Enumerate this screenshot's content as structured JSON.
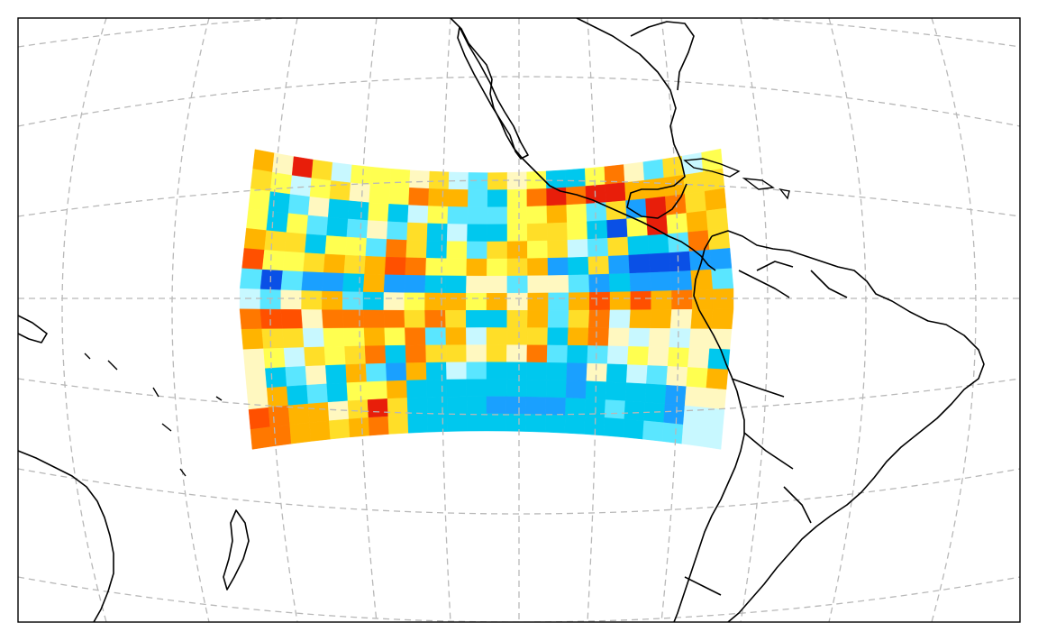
{
  "map": {
    "projection": "lambert-azimuthal",
    "coastline_color": "#000000",
    "graticule_color": "#b8b8b8",
    "graticule_style": "dashed",
    "frame_color": "#000000",
    "background": "#ffffff"
  },
  "chart_data": {
    "type": "heatmap",
    "colormap": "jet",
    "rows": 15,
    "cols": 24,
    "colors": {
      "1": "#0a50e6",
      "2": "#1aa0ff",
      "3": "#00c8ee",
      "4": "#5ae6ff",
      "5": "#c8f8ff",
      "6": "#fff8c0",
      "7": "#ffff50",
      "8": "#ffde28",
      "9": "#ffb400",
      "10": "#ff7800",
      "11": "#ff5000",
      "12": "#e81e0a"
    },
    "grid": [
      [
        9,
        6,
        12,
        8,
        5,
        7,
        7,
        7,
        6,
        8,
        5,
        4,
        8,
        6,
        7,
        3,
        3,
        7,
        10,
        6,
        4,
        8,
        5,
        7
      ],
      [
        8,
        7,
        5,
        7,
        8,
        6,
        7,
        7,
        10,
        9,
        9,
        4,
        3,
        7,
        10,
        12,
        10,
        12,
        12,
        9,
        9,
        9,
        8,
        8
      ],
      [
        7,
        3,
        4,
        6,
        3,
        3,
        7,
        3,
        5,
        7,
        4,
        4,
        4,
        7,
        7,
        9,
        7,
        4,
        8,
        2,
        12,
        10,
        8,
        9
      ],
      [
        7,
        3,
        7,
        4,
        3,
        4,
        6,
        4,
        8,
        3,
        5,
        3,
        3,
        7,
        8,
        8,
        7,
        3,
        1,
        7,
        12,
        7,
        9,
        8
      ],
      [
        9,
        8,
        8,
        3,
        7,
        7,
        4,
        10,
        8,
        3,
        7,
        4,
        8,
        9,
        7,
        8,
        5,
        4,
        8,
        3,
        3,
        4,
        10,
        8
      ],
      [
        11,
        7,
        7,
        8,
        9,
        8,
        9,
        11,
        10,
        7,
        7,
        9,
        7,
        8,
        9,
        2,
        3,
        8,
        2,
        1,
        1,
        1,
        2,
        2
      ],
      [
        4,
        1,
        4,
        2,
        2,
        3,
        9,
        2,
        2,
        3,
        3,
        6,
        6,
        4,
        6,
        6,
        4,
        2,
        3,
        2,
        2,
        2,
        9,
        4
      ],
      [
        5,
        4,
        6,
        8,
        9,
        4,
        3,
        6,
        7,
        9,
        9,
        7,
        9,
        6,
        9,
        4,
        9,
        11,
        9,
        11,
        9,
        10,
        9,
        9
      ],
      [
        10,
        11,
        11,
        6,
        10,
        10,
        10,
        10,
        8,
        10,
        8,
        3,
        3,
        8,
        9,
        4,
        8,
        10,
        5,
        9,
        9,
        6,
        9,
        9
      ],
      [
        9,
        8,
        8,
        5,
        7,
        7,
        9,
        7,
        10,
        4,
        9,
        5,
        8,
        8,
        8,
        3,
        9,
        10,
        6,
        5,
        6,
        5,
        6,
        6
      ],
      [
        6,
        7,
        5,
        8,
        7,
        8,
        10,
        3,
        10,
        8,
        8,
        6,
        8,
        6,
        10,
        4,
        3,
        4,
        5,
        7,
        6,
        7,
        6,
        3
      ],
      [
        6,
        3,
        4,
        6,
        3,
        9,
        4,
        2,
        9,
        3,
        5,
        4,
        3,
        3,
        3,
        3,
        2,
        6,
        3,
        5,
        4,
        6,
        7,
        9
      ],
      [
        6,
        9,
        3,
        4,
        3,
        7,
        7,
        9,
        3,
        3,
        3,
        3,
        3,
        3,
        3,
        3,
        2,
        3,
        3,
        3,
        3,
        2,
        6,
        6
      ],
      [
        11,
        10,
        9,
        9,
        6,
        8,
        12,
        8,
        3,
        3,
        3,
        3,
        2,
        2,
        2,
        2,
        3,
        3,
        4,
        3,
        3,
        2,
        5,
        5
      ],
      [
        10,
        10,
        9,
        9,
        8,
        9,
        10,
        8,
        3,
        3,
        3,
        3,
        3,
        3,
        3,
        3,
        3,
        3,
        3,
        3,
        4,
        4,
        5,
        5
      ]
    ]
  }
}
